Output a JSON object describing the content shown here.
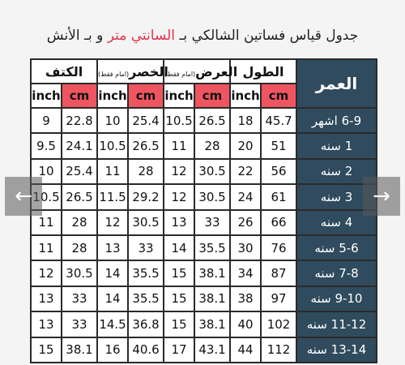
{
  "title": {
    "before": "جدول قياس فساتين الشالكي بـ ",
    "accent": "السانتي متر",
    "after": " و بـ الأنش"
  },
  "table": {
    "age_header": "العمر",
    "groups": [
      {
        "label": "الكتف",
        "note": ""
      },
      {
        "label": "الخصر",
        "note": "(امام فقط)"
      },
      {
        "label": "العرض",
        "note": "(امام فقط)"
      },
      {
        "label": "الطول",
        "note": ""
      }
    ],
    "units": {
      "inch": "inch",
      "cm": "cm"
    },
    "rows": [
      {
        "age": "6-9 اشهر",
        "vals": [
          "9",
          "22.8",
          "10",
          "25.4",
          "10.5",
          "26.5",
          "18",
          "45.7"
        ]
      },
      {
        "age": "1 سنه",
        "vals": [
          "9.5",
          "24.1",
          "10.5",
          "26.5",
          "11",
          "28",
          "20",
          "51"
        ]
      },
      {
        "age": "2 سنه",
        "vals": [
          "10",
          "25.4",
          "11",
          "28",
          "12",
          "30.5",
          "22",
          "56"
        ]
      },
      {
        "age": "3 سنه",
        "vals": [
          "10.5",
          "26.5",
          "11.5",
          "29.2",
          "12",
          "30.5",
          "24",
          "61"
        ]
      },
      {
        "age": "4 سنه",
        "vals": [
          "11",
          "28",
          "12",
          "30.5",
          "13",
          "33",
          "26",
          "66"
        ]
      },
      {
        "age": "5-6 سنه",
        "vals": [
          "11",
          "28",
          "13",
          "33",
          "14",
          "35.5",
          "30",
          "76"
        ]
      },
      {
        "age": "7-8 سنه",
        "vals": [
          "12",
          "30.5",
          "14",
          "35.5",
          "15",
          "38.1",
          "34",
          "87"
        ]
      },
      {
        "age": "9-10 سنه",
        "vals": [
          "13",
          "33",
          "14",
          "35.5",
          "15",
          "38.1",
          "38",
          "97"
        ]
      },
      {
        "age": "11-12 سنه",
        "vals": [
          "13",
          "33",
          "14.5",
          "36.8",
          "15",
          "38.1",
          "40",
          "102"
        ]
      },
      {
        "age": "13-14 سنه",
        "vals": [
          "15",
          "38.1",
          "16",
          "40.6",
          "17",
          "43.1",
          "44",
          "112"
        ]
      }
    ]
  },
  "nav": {
    "prev_icon": "←",
    "next_icon": "→"
  },
  "colors": {
    "accent": "#e0334e",
    "cm_header": "#ef5561",
    "age_column": "#2f4b5d"
  }
}
